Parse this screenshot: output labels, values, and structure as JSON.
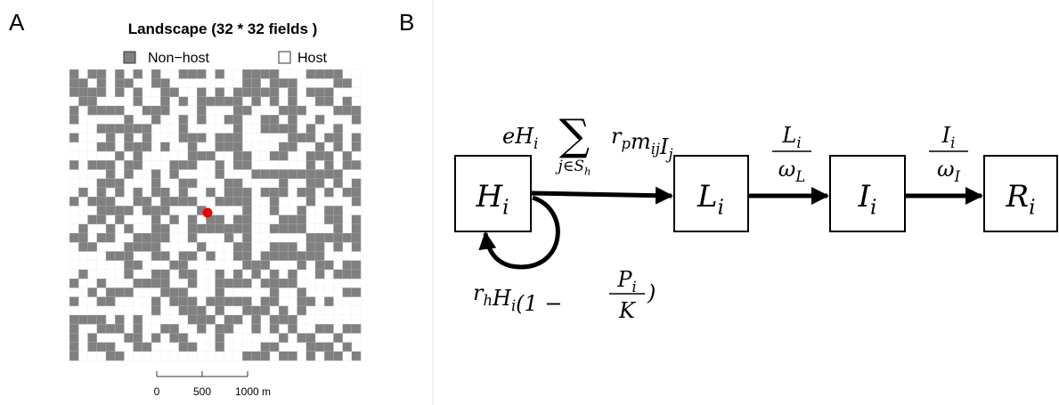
{
  "panel_labels": [
    "A",
    "B"
  ],
  "landscape": {
    "title": "Landscape (32 * 32 fields )",
    "legend": [
      "Non−host",
      "Host"
    ],
    "scale_labels": [
      "0",
      "500",
      "1000 m"
    ]
  },
  "diagram": {
    "nodes": [
      {
        "t": "H",
        "sub": "i"
      },
      {
        "t": "L",
        "sub": "i"
      },
      {
        "t": "I",
        "sub": "i"
      },
      {
        "t": "R",
        "sub": "i"
      }
    ],
    "infection_rate": {
      "lead": {
        "t": "eH",
        "sub": "i"
      },
      "sum": "∑",
      "index": {
        "t": "j∈S",
        "sub": "h"
      },
      "terms": [
        {
          "t": "r",
          "sub": "p"
        },
        {
          "t": "m",
          "sub": "ij"
        },
        {
          "t": "I",
          "sub": "j"
        }
      ]
    },
    "growth_rate": {
      "parts": [
        {
          "t": "r",
          "sub": "h"
        },
        {
          "t": "H",
          "sub": "i"
        },
        {
          "t": "(1 − "
        }
      ],
      "num": {
        "t": "P",
        "sub": "i"
      },
      "den": {
        "t": "K"
      },
      "close": ")"
    },
    "latent_rate": {
      "num": {
        "t": "L",
        "sub": "i"
      },
      "den": {
        "t": "ω",
        "sub": "L"
      }
    },
    "infectious_rate": {
      "num": {
        "t": "I",
        "sub": "i"
      },
      "den": {
        "t": "ω",
        "sub": "I"
      }
    }
  }
}
